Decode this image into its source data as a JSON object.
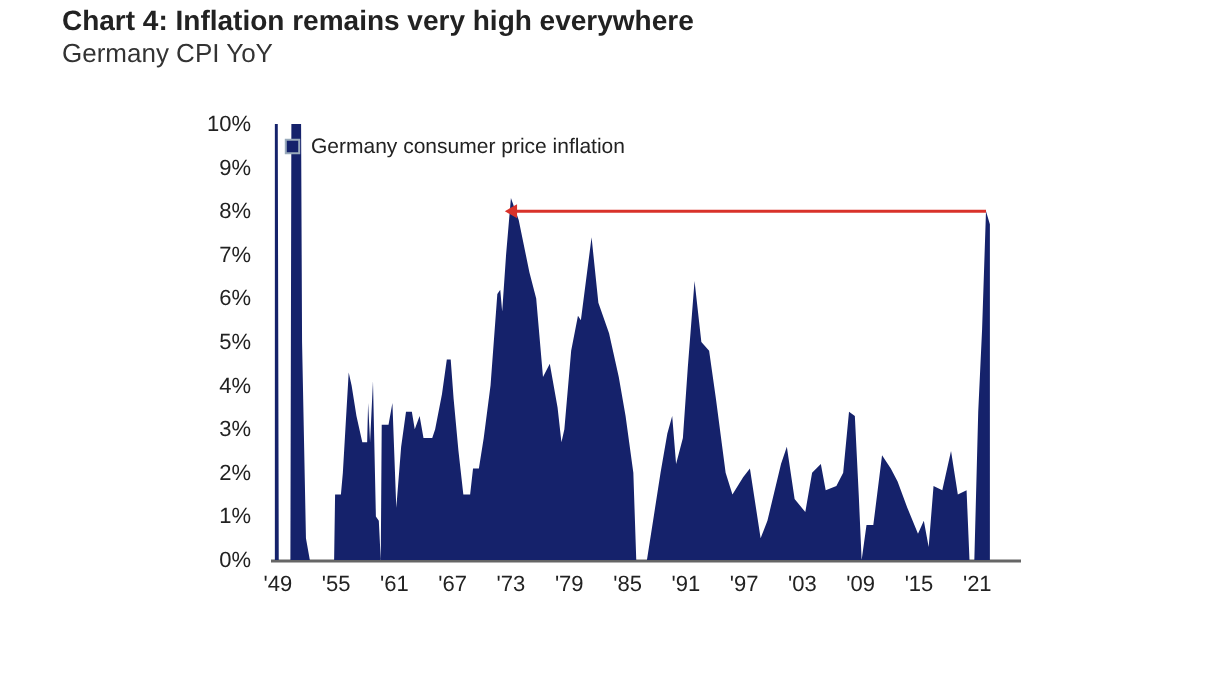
{
  "chart_data": {
    "type": "area",
    "title": "Chart 4: Inflation remains very high everywhere",
    "subtitle": "Germany CPI YoY",
    "x": [
      1948.8,
      1949.1,
      1949.2,
      1950.4,
      1950.5,
      1951.5,
      1951.6,
      1952.0,
      1952.4,
      1954.9,
      1955.0,
      1955.6,
      1955.8,
      1956.4,
      1956.7,
      1957.2,
      1957.8,
      1958.3,
      1958.4,
      1958.6,
      1958.9,
      1959.2,
      1959.5,
      1959.7,
      1959.8,
      1960.5,
      1960.9,
      1961.3,
      1961.8,
      1962.3,
      1962.9,
      1963.2,
      1963.7,
      1964.1,
      1965.0,
      1965.3,
      1966.0,
      1966.5,
      1966.9,
      1967.2,
      1967.7,
      1968.2,
      1968.9,
      1969.2,
      1969.8,
      1970.3,
      1971.0,
      1971.7,
      1972.0,
      1972.2,
      1972.6,
      1973.1,
      1973.9,
      1975.0,
      1975.7,
      1976.4,
      1977.1,
      1977.9,
      1978.3,
      1978.6,
      1979.3,
      1980.0,
      1980.3,
      1981.4,
      1982.1,
      1983.2,
      1984.2,
      1984.9,
      1985.7,
      1986.0,
      1987.1,
      1987.8,
      1988.5,
      1989.2,
      1989.7,
      1990.1,
      1990.8,
      1991.3,
      1992.0,
      1992.7,
      1993.5,
      1994.2,
      1995.2,
      1995.9,
      1997.0,
      1997.7,
      1998.8,
      1999.5,
      2000.9,
      2001.5,
      2002.3,
      2003.4,
      2004.1,
      2005.0,
      2005.5,
      2006.6,
      2007.3,
      2007.9,
      2008.5,
      2008.9,
      2009.2,
      2009.7,
      2010.4,
      2011.3,
      2012.2,
      2012.9,
      2013.9,
      2015.0,
      2015.6,
      2016.1,
      2016.6,
      2017.5,
      2018.4,
      2019.1,
      2020.0,
      2020.3,
      2020.8,
      2021.2,
      2021.6,
      2022.0,
      2022.4
    ],
    "series": [
      {
        "name": "Germany consumer price inflation",
        "color": "#15226b",
        "values": [
          10,
          10,
          0,
          0,
          10,
          10,
          5,
          0.5,
          0,
          0,
          1.5,
          1.5,
          2,
          4.3,
          4,
          3.3,
          2.7,
          2.7,
          3.6,
          2.7,
          4.1,
          1,
          0.9,
          0,
          3.1,
          3.1,
          3.6,
          1.2,
          2.6,
          3.4,
          3.4,
          3.0,
          3.3,
          2.8,
          2.8,
          3.0,
          3.8,
          4.6,
          4.6,
          3.7,
          2.5,
          1.5,
          1.5,
          2.1,
          2.1,
          2.8,
          4.0,
          6.1,
          6.2,
          5.7,
          7.0,
          8.3,
          7.8,
          6.6,
          6.0,
          4.2,
          4.5,
          3.5,
          2.7,
          3.0,
          4.8,
          5.6,
          5.5,
          7.4,
          5.9,
          5.2,
          4.2,
          3.3,
          2.0,
          0,
          0,
          1,
          2,
          2.9,
          3.3,
          2.2,
          2.8,
          4.4,
          6.4,
          5,
          4.8,
          3.7,
          2.0,
          1.5,
          1.9,
          2.1,
          0.5,
          0.9,
          2.2,
          2.6,
          1.4,
          1.1,
          2.0,
          2.2,
          1.6,
          1.7,
          2.0,
          3.4,
          3.3,
          1.5,
          0,
          0.8,
          0.8,
          2.4,
          2.1,
          1.8,
          1.2,
          0.6,
          0.9,
          0.3,
          1.7,
          1.6,
          2.5,
          1.5,
          1.6,
          0,
          0,
          3.4,
          5.3,
          8.0,
          7.7
        ]
      }
    ],
    "xlim": [
      1948.3,
      2025.5
    ],
    "xticks": [
      {
        "value": 1949,
        "label": "'49"
      },
      {
        "value": 1955,
        "label": "'55"
      },
      {
        "value": 1961,
        "label": "'61"
      },
      {
        "value": 1967,
        "label": "'67"
      },
      {
        "value": 1973,
        "label": "'73"
      },
      {
        "value": 1979,
        "label": "'79"
      },
      {
        "value": 1985,
        "label": "'85"
      },
      {
        "value": 1991,
        "label": "'91"
      },
      {
        "value": 1997,
        "label": "'97"
      },
      {
        "value": 2003,
        "label": "'03"
      },
      {
        "value": 2009,
        "label": "'09"
      },
      {
        "value": 2015,
        "label": "'15"
      },
      {
        "value": 2021,
        "label": "'21"
      }
    ],
    "ylim": [
      0,
      10
    ],
    "yticks": [
      {
        "value": 0,
        "label": "0%"
      },
      {
        "value": 1,
        "label": "1%"
      },
      {
        "value": 2,
        "label": "2%"
      },
      {
        "value": 3,
        "label": "3%"
      },
      {
        "value": 4,
        "label": "4%"
      },
      {
        "value": 5,
        "label": "5%"
      },
      {
        "value": 6,
        "label": "6%"
      },
      {
        "value": 7,
        "label": "7%"
      },
      {
        "value": 8,
        "label": "8%"
      },
      {
        "value": 9,
        "label": "9%"
      },
      {
        "value": 10,
        "label": "10%"
      }
    ],
    "grid": false,
    "legend": "top left"
  }
}
